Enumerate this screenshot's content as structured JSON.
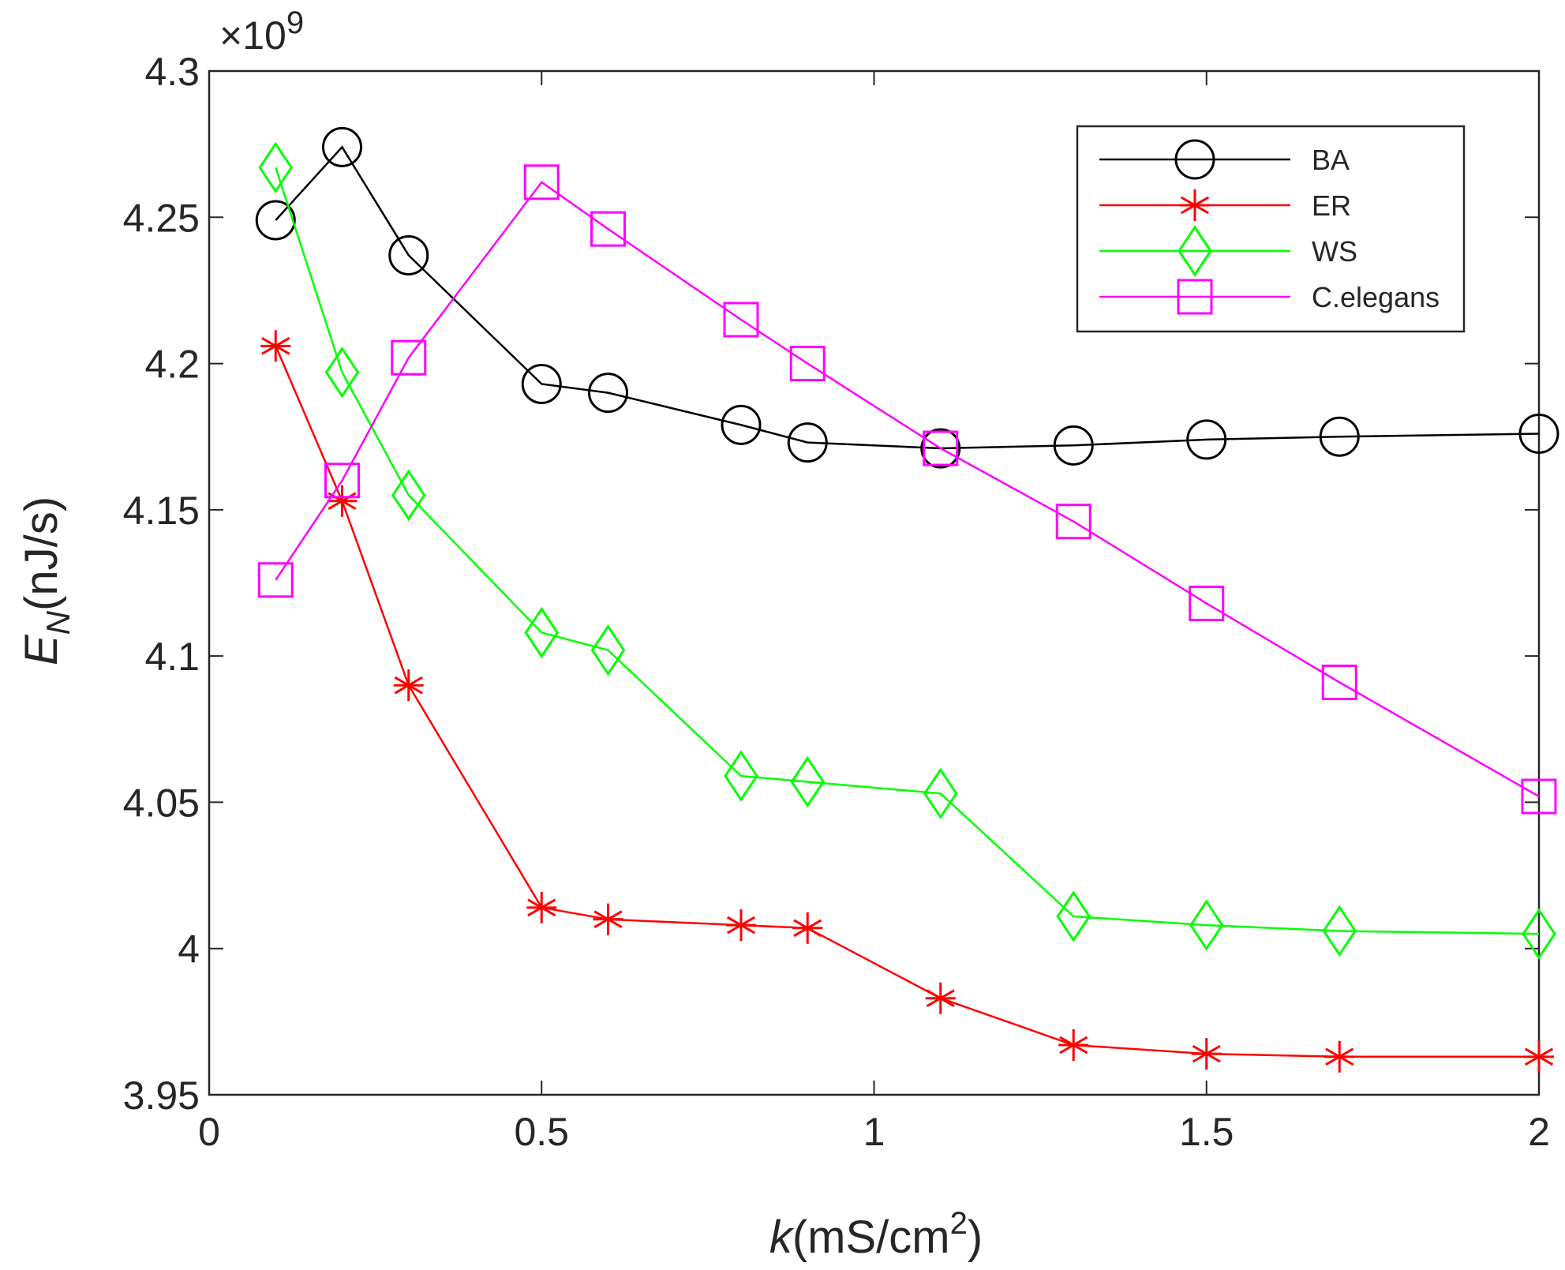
{
  "chart_data": {
    "type": "line",
    "title": "",
    "xlabel": {
      "var": "k",
      "unit_pre": "(mS/cm",
      "unit_sup": "2",
      "unit_post": ")"
    },
    "ylabel": {
      "var": "E",
      "sub": "N",
      "unit": "(nJ/s)"
    },
    "y_exponent": {
      "base": "×10",
      "power": "9"
    },
    "xlim": [
      0,
      2
    ],
    "ylim": [
      3.95,
      4.3
    ],
    "xticks": [
      0,
      0.5,
      1,
      1.5,
      2
    ],
    "xtick_labels": [
      "0",
      "0.5",
      "1",
      "1.5",
      "2"
    ],
    "yticks": [
      3.95,
      4.0,
      4.05,
      4.1,
      4.15,
      4.2,
      4.25,
      4.3
    ],
    "ytick_labels": [
      "3.95",
      "4",
      "4.05",
      "4.1",
      "4.15",
      "4.2",
      "4.25",
      "4.3"
    ],
    "grid": false,
    "legend_position": "top-right",
    "x": [
      0.1,
      0.2,
      0.3,
      0.5,
      0.6,
      0.8,
      0.9,
      1.1,
      1.3,
      1.5,
      1.7,
      2.0
    ],
    "series": [
      {
        "name": "BA",
        "color": "#000000",
        "marker": "circle",
        "values": [
          4.249,
          4.274,
          4.237,
          4.193,
          4.19,
          4.179,
          4.173,
          4.171,
          4.172,
          4.174,
          4.175,
          4.176
        ]
      },
      {
        "name": "ER",
        "color": "#ff0000",
        "marker": "asterisk",
        "values": [
          4.206,
          4.153,
          4.09,
          4.014,
          4.01,
          4.008,
          4.007,
          3.983,
          3.967,
          3.964,
          3.963,
          3.963
        ]
      },
      {
        "name": "WS",
        "color": "#00ff00",
        "marker": "diamond",
        "values": [
          4.267,
          4.197,
          4.155,
          4.108,
          4.102,
          4.059,
          4.057,
          4.053,
          4.011,
          4.008,
          4.006,
          4.005
        ]
      },
      {
        "name": "C.elegans",
        "color": "#ff00ff",
        "marker": "square",
        "values": [
          4.126,
          4.16,
          4.202,
          4.262,
          4.246,
          4.215,
          4.2,
          4.171,
          4.146,
          4.118,
          4.091,
          4.052
        ]
      }
    ]
  }
}
